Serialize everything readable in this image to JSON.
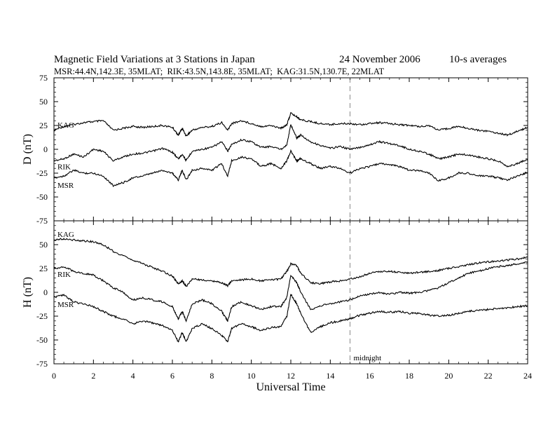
{
  "header": {
    "title": "Magnetic Field Variations at 3 Stations in Japan",
    "date": "24 November 2006",
    "averaging": "10-s averages",
    "stations_line": "MSR:44.4N,142.3E, 35MLAT;  RIK:43.5N,143.8E, 35MLAT;  KAG:31.5N,130.7E, 22MLAT"
  },
  "chart_data": [
    {
      "type": "line",
      "ylabel": "D (nT)",
      "xlabel": "",
      "xlim": [
        0,
        24
      ],
      "ylim": [
        -75,
        75
      ],
      "yticks": [
        "75",
        "50",
        "25",
        "0",
        "-25",
        "-50",
        "-75"
      ],
      "series": [
        {
          "name": "KAG",
          "x": [
            0,
            0.5,
            1,
            1.5,
            2,
            2.5,
            3,
            3.5,
            4,
            4.5,
            5,
            5.5,
            6,
            6.3,
            6.5,
            6.7,
            7,
            7.5,
            8,
            8.5,
            8.8,
            9,
            9.5,
            10,
            10.5,
            11,
            11.5,
            11.8,
            12,
            12.3,
            12.5,
            13,
            13.5,
            14,
            14.5,
            15,
            15.5,
            16,
            16.5,
            17,
            17.5,
            18,
            18.5,
            19,
            19.5,
            20,
            20.5,
            21,
            21.5,
            22,
            22.5,
            23,
            23.5,
            24
          ],
          "y": [
            20,
            24,
            26,
            28,
            29,
            30,
            20,
            22,
            24,
            23,
            24,
            25,
            23,
            15,
            22,
            14,
            20,
            23,
            24,
            28,
            20,
            27,
            30,
            27,
            24,
            25,
            22,
            26,
            38,
            34,
            31,
            29,
            27,
            26,
            27,
            27,
            26,
            27,
            28,
            27,
            26,
            25,
            24,
            25,
            20,
            22,
            24,
            22,
            20,
            19,
            17,
            15,
            19,
            23
          ]
        },
        {
          "name": "RIK",
          "x": [
            0,
            0.5,
            1,
            1.5,
            2,
            2.5,
            3,
            3.5,
            4,
            4.5,
            5,
            5.5,
            6,
            6.3,
            6.5,
            6.7,
            7,
            7.5,
            8,
            8.5,
            8.8,
            9,
            9.5,
            10,
            10.5,
            11,
            11.5,
            11.8,
            12,
            12.3,
            12.5,
            13,
            13.5,
            14,
            14.5,
            15,
            15.5,
            16,
            16.5,
            17,
            17.5,
            18,
            18.5,
            19,
            19.5,
            20,
            20.5,
            21,
            21.5,
            22,
            22.5,
            23,
            23.5,
            24
          ],
          "y": [
            -12,
            -10,
            -5,
            -8,
            0,
            -2,
            -12,
            -8,
            -5,
            -4,
            -2,
            1,
            -3,
            -10,
            -5,
            -12,
            -2,
            0,
            2,
            8,
            -2,
            5,
            10,
            8,
            2,
            3,
            0,
            5,
            26,
            12,
            15,
            8,
            4,
            1,
            3,
            0,
            2,
            5,
            8,
            6,
            4,
            0,
            -2,
            -5,
            -10,
            -8,
            -5,
            -6,
            -8,
            -10,
            -12,
            -18,
            -15,
            -10
          ]
        },
        {
          "name": "MSR",
          "x": [
            0,
            0.5,
            1,
            1.5,
            2,
            2.5,
            3,
            3.5,
            4,
            4.5,
            5,
            5.5,
            6,
            6.3,
            6.5,
            6.7,
            7,
            7.5,
            8,
            8.5,
            8.8,
            9,
            9.5,
            10,
            10.5,
            11,
            11.5,
            11.8,
            12,
            12.3,
            12.5,
            13,
            13.5,
            14,
            14.5,
            15,
            15.5,
            16,
            16.5,
            17,
            17.5,
            18,
            18.5,
            19,
            19.5,
            20,
            20.5,
            21,
            21.5,
            22,
            22.5,
            23,
            23.5,
            24
          ],
          "y": [
            -30,
            -28,
            -22,
            -25,
            -25,
            -28,
            -38,
            -35,
            -30,
            -28,
            -25,
            -22,
            -25,
            -32,
            -22,
            -32,
            -22,
            -20,
            -22,
            -15,
            -28,
            -12,
            -8,
            -10,
            -18,
            -15,
            -20,
            -12,
            -2,
            -12,
            -10,
            -15,
            -20,
            -18,
            -20,
            -25,
            -20,
            -18,
            -15,
            -16,
            -18,
            -22,
            -22,
            -25,
            -33,
            -30,
            -25,
            -25,
            -28,
            -28,
            -30,
            -32,
            -28,
            -24
          ]
        }
      ]
    },
    {
      "type": "line",
      "ylabel": "H (nT)",
      "xlabel": "Universal Time",
      "xlim": [
        0,
        24
      ],
      "ylim": [
        -75,
        75
      ],
      "xticks": [
        "0",
        "2",
        "4",
        "6",
        "8",
        "10",
        "12",
        "14",
        "16",
        "18",
        "20",
        "22",
        "24"
      ],
      "yticks": [
        "50",
        "25",
        "0",
        "-25",
        "-50",
        "-75"
      ],
      "annotations": [
        {
          "text": "midnight",
          "x": 15
        }
      ],
      "series": [
        {
          "name": "KAG",
          "x": [
            0,
            0.5,
            1,
            1.5,
            2,
            2.5,
            3,
            3.5,
            4,
            4.5,
            5,
            5.5,
            6,
            6.3,
            6.5,
            6.7,
            7,
            7.5,
            8,
            8.5,
            8.8,
            9,
            9.5,
            10,
            10.5,
            11,
            11.5,
            11.8,
            12,
            12.3,
            12.5,
            13,
            13.5,
            14,
            14.5,
            15,
            15.5,
            16,
            16.5,
            17,
            17.5,
            18,
            18.5,
            19,
            19.5,
            20,
            20.5,
            21,
            21.5,
            22,
            22.5,
            23,
            23.5,
            24
          ],
          "y": [
            55,
            56,
            55,
            54,
            53,
            50,
            43,
            38,
            34,
            30,
            26,
            22,
            17,
            9,
            12,
            6,
            14,
            13,
            12,
            10,
            7,
            12,
            13,
            14,
            12,
            13,
            14,
            22,
            30,
            28,
            20,
            10,
            9,
            11,
            12,
            14,
            16,
            20,
            22,
            22,
            21,
            20,
            21,
            22,
            23,
            25,
            27,
            29,
            31,
            32,
            33,
            34,
            35,
            37
          ]
        },
        {
          "name": "RIK",
          "x": [
            0,
            0.5,
            1,
            1.5,
            2,
            2.5,
            3,
            3.5,
            4,
            4.5,
            5,
            5.5,
            6,
            6.3,
            6.5,
            6.7,
            7,
            7.5,
            8,
            8.5,
            8.8,
            9,
            9.5,
            10,
            10.5,
            11,
            11.5,
            11.8,
            12,
            12.3,
            12.5,
            13,
            13.5,
            14,
            14.5,
            15,
            15.5,
            16,
            16.5,
            17,
            17.5,
            18,
            18.5,
            19,
            19.5,
            20,
            20.5,
            21,
            21.5,
            22,
            22.5,
            23,
            23.5,
            24
          ],
          "y": [
            25,
            27,
            22,
            20,
            18,
            12,
            5,
            0,
            -8,
            -6,
            -8,
            -10,
            -15,
            -28,
            -20,
            -30,
            -12,
            -8,
            -12,
            -20,
            -30,
            -15,
            -10,
            -14,
            -18,
            -15,
            -15,
            -5,
            18,
            10,
            0,
            -18,
            -14,
            -12,
            -10,
            -8,
            -4,
            -2,
            0,
            -2,
            0,
            -1,
            0,
            2,
            5,
            10,
            15,
            20,
            22,
            25,
            27,
            28,
            30,
            32
          ]
        },
        {
          "name": "MSR",
          "x": [
            0,
            0.5,
            1,
            1.5,
            2,
            2.5,
            3,
            3.5,
            4,
            4.5,
            5,
            5.5,
            6,
            6.3,
            6.5,
            6.7,
            7,
            7.5,
            8,
            8.5,
            8.8,
            9,
            9.5,
            10,
            10.5,
            11,
            11.5,
            11.8,
            12,
            12.3,
            12.5,
            13,
            13.5,
            14,
            14.5,
            15,
            15.5,
            16,
            16.5,
            17,
            17.5,
            18,
            18.5,
            19,
            19.5,
            20,
            20.5,
            21,
            21.5,
            22,
            22.5,
            23,
            23.5,
            24
          ],
          "y": [
            -5,
            -3,
            -10,
            -12,
            -15,
            -20,
            -25,
            -28,
            -33,
            -30,
            -32,
            -35,
            -40,
            -52,
            -42,
            -52,
            -38,
            -33,
            -38,
            -45,
            -52,
            -38,
            -33,
            -36,
            -40,
            -37,
            -36,
            -25,
            -2,
            -12,
            -22,
            -42,
            -36,
            -32,
            -30,
            -28,
            -24,
            -22,
            -20,
            -21,
            -20,
            -22,
            -22,
            -24,
            -25,
            -24,
            -22,
            -20,
            -19,
            -18,
            -17,
            -16,
            -15,
            -14
          ]
        }
      ]
    }
  ]
}
